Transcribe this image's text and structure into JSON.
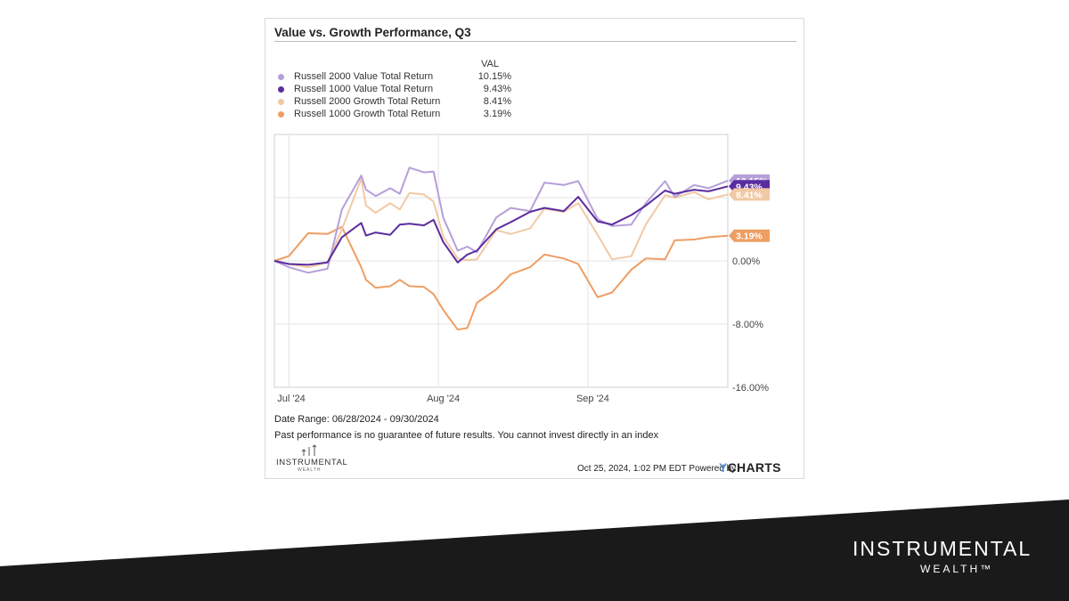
{
  "chart_data": {
    "type": "line",
    "title": "Value vs. Growth Performance, Q3",
    "legend_header": "VAL",
    "legend_placement": "top-left",
    "x_ticks": [
      "Jul '24",
      "Aug '24",
      "Sep '24"
    ],
    "x_range": [
      "2024-06-28",
      "2024-09-30"
    ],
    "y_ticks": [
      "0.00%",
      "-8.00%",
      "-16.00%"
    ],
    "y_tick_values": [
      0,
      -8,
      -16
    ],
    "ylim": [
      -16,
      16
    ],
    "grid": true,
    "series": [
      {
        "name": "Russell 2000 Value Total Return",
        "color": "#b69fd9",
        "end_label": "10.15%",
        "dates": [
          "2024-06-28",
          "2024-07-01",
          "2024-07-05",
          "2024-07-09",
          "2024-07-12",
          "2024-07-16",
          "2024-07-17",
          "2024-07-19",
          "2024-07-22",
          "2024-07-24",
          "2024-07-26",
          "2024-07-29",
          "2024-07-31",
          "2024-08-02",
          "2024-08-05",
          "2024-08-07",
          "2024-08-09",
          "2024-08-13",
          "2024-08-16",
          "2024-08-20",
          "2024-08-23",
          "2024-08-27",
          "2024-08-30",
          "2024-09-03",
          "2024-09-06",
          "2024-09-10",
          "2024-09-13",
          "2024-09-17",
          "2024-09-19",
          "2024-09-23",
          "2024-09-26",
          "2024-09-30"
        ],
        "values": [
          0.0,
          -0.8,
          -1.5,
          -1.0,
          6.5,
          10.8,
          9.0,
          8.2,
          9.2,
          8.5,
          11.8,
          11.2,
          11.3,
          5.5,
          1.3,
          1.8,
          1.1,
          5.5,
          6.7,
          6.3,
          9.9,
          9.6,
          10.1,
          5.3,
          4.4,
          4.6,
          7.3,
          10.1,
          8.1,
          9.6,
          9.2,
          10.15
        ]
      },
      {
        "name": "Russell 1000 Value Total Return",
        "color": "#5b2c9f",
        "end_label": "9.43%",
        "dates": [
          "2024-06-28",
          "2024-07-01",
          "2024-07-05",
          "2024-07-09",
          "2024-07-12",
          "2024-07-16",
          "2024-07-17",
          "2024-07-19",
          "2024-07-22",
          "2024-07-24",
          "2024-07-26",
          "2024-07-29",
          "2024-07-31",
          "2024-08-02",
          "2024-08-05",
          "2024-08-07",
          "2024-08-09",
          "2024-08-13",
          "2024-08-16",
          "2024-08-20",
          "2024-08-23",
          "2024-08-27",
          "2024-08-30",
          "2024-09-03",
          "2024-09-06",
          "2024-09-10",
          "2024-09-13",
          "2024-09-17",
          "2024-09-19",
          "2024-09-23",
          "2024-09-26",
          "2024-09-30"
        ],
        "values": [
          0.0,
          -0.4,
          -0.5,
          -0.2,
          3.0,
          4.8,
          3.2,
          3.6,
          3.3,
          4.6,
          4.7,
          4.5,
          5.2,
          2.4,
          -0.2,
          0.8,
          1.3,
          4.0,
          4.9,
          6.2,
          6.7,
          6.3,
          8.1,
          5.0,
          4.6,
          5.8,
          7.0,
          8.9,
          8.5,
          9.0,
          8.8,
          9.43
        ]
      },
      {
        "name": "Russell 2000 Growth Total Return",
        "color": "#f1c9a5",
        "end_label": "8.41%",
        "dates": [
          "2024-06-28",
          "2024-07-01",
          "2024-07-05",
          "2024-07-09",
          "2024-07-12",
          "2024-07-16",
          "2024-07-17",
          "2024-07-19",
          "2024-07-22",
          "2024-07-24",
          "2024-07-26",
          "2024-07-29",
          "2024-07-31",
          "2024-08-02",
          "2024-08-05",
          "2024-08-07",
          "2024-08-09",
          "2024-08-13",
          "2024-08-16",
          "2024-08-20",
          "2024-08-23",
          "2024-08-27",
          "2024-08-30",
          "2024-09-03",
          "2024-09-06",
          "2024-09-10",
          "2024-09-13",
          "2024-09-17",
          "2024-09-19",
          "2024-09-23",
          "2024-09-26",
          "2024-09-30"
        ],
        "values": [
          0.0,
          -0.4,
          -0.8,
          -0.2,
          4.0,
          10.4,
          7.0,
          6.1,
          7.3,
          6.5,
          8.6,
          8.4,
          7.5,
          3.1,
          0.3,
          0.1,
          0.2,
          3.9,
          3.4,
          4.1,
          6.6,
          6.2,
          7.3,
          3.3,
          0.2,
          0.6,
          4.6,
          8.3,
          8.0,
          8.7,
          7.8,
          8.41
        ]
      },
      {
        "name": "Russell 1000 Growth Total Return",
        "color": "#ee9e64",
        "end_label": "3.19%",
        "dates": [
          "2024-06-28",
          "2024-07-01",
          "2024-07-05",
          "2024-07-09",
          "2024-07-12",
          "2024-07-16",
          "2024-07-17",
          "2024-07-19",
          "2024-07-22",
          "2024-07-24",
          "2024-07-26",
          "2024-07-29",
          "2024-07-31",
          "2024-08-02",
          "2024-08-05",
          "2024-08-07",
          "2024-08-09",
          "2024-08-13",
          "2024-08-16",
          "2024-08-20",
          "2024-08-23",
          "2024-08-27",
          "2024-08-30",
          "2024-09-03",
          "2024-09-06",
          "2024-09-10",
          "2024-09-13",
          "2024-09-17",
          "2024-09-19",
          "2024-09-23",
          "2024-09-26",
          "2024-09-30"
        ],
        "values": [
          0.0,
          0.6,
          3.5,
          3.4,
          4.3,
          -0.8,
          -2.4,
          -3.4,
          -3.2,
          -2.4,
          -3.2,
          -3.3,
          -4.2,
          -6.2,
          -8.7,
          -8.5,
          -5.3,
          -3.6,
          -1.7,
          -0.8,
          0.8,
          0.3,
          -0.4,
          -4.6,
          -4.0,
          -1.1,
          0.3,
          0.2,
          2.6,
          2.7,
          3.0,
          3.19
        ]
      }
    ],
    "date_range_text": "Date Range: 06/28/2024 - 09/30/2024"
  },
  "footer": {
    "disclaimer": "Past performance is no guarantee of future results. You cannot invest directly in an index",
    "timestamp": "Oct 25, 2024, 1:02 PM EDT Powered by",
    "ycharts_y": "Y",
    "ycharts_rest": "CHARTS",
    "logo_word": "INSTRUMENTAL",
    "logo_sub": "WEALTH"
  },
  "brand": {
    "word": "INSTRUMENTAL",
    "sub": "WEALTH™",
    "band_color": "#1b1a1a"
  }
}
